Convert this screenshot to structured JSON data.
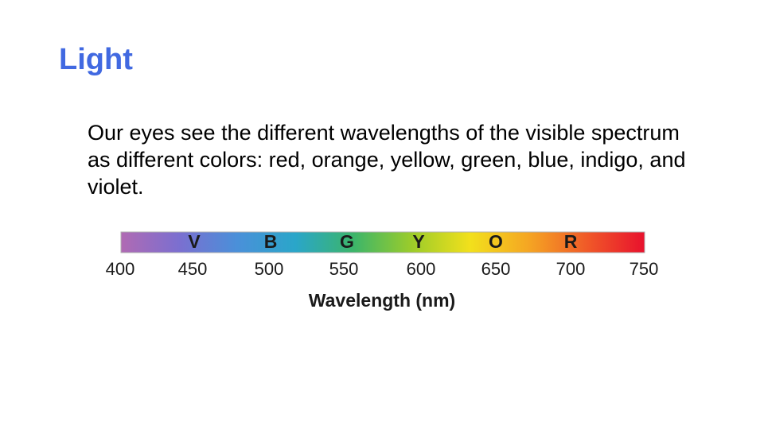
{
  "slide": {
    "title": "Light",
    "body": "Our eyes see the different wavelengths of the visible spectrum as different colors: red, orange, yellow, green, blue, indigo, and violet."
  },
  "spectrum": {
    "bands": [
      "V",
      "B",
      "G",
      "Y",
      "O",
      "R"
    ],
    "ticks": [
      "400",
      "450",
      "500",
      "550",
      "600",
      "650",
      "700",
      "750"
    ],
    "axis_label": "Wavelength (nm)",
    "gradient_colors": [
      "#b06ab3",
      "#7b6fd0",
      "#4a90d9",
      "#2aa6c9",
      "#3cb56a",
      "#9ccc2a",
      "#f2e01c",
      "#f5a623",
      "#f05a28",
      "#e8112d"
    ],
    "range_nm": [
      400,
      750
    ]
  }
}
